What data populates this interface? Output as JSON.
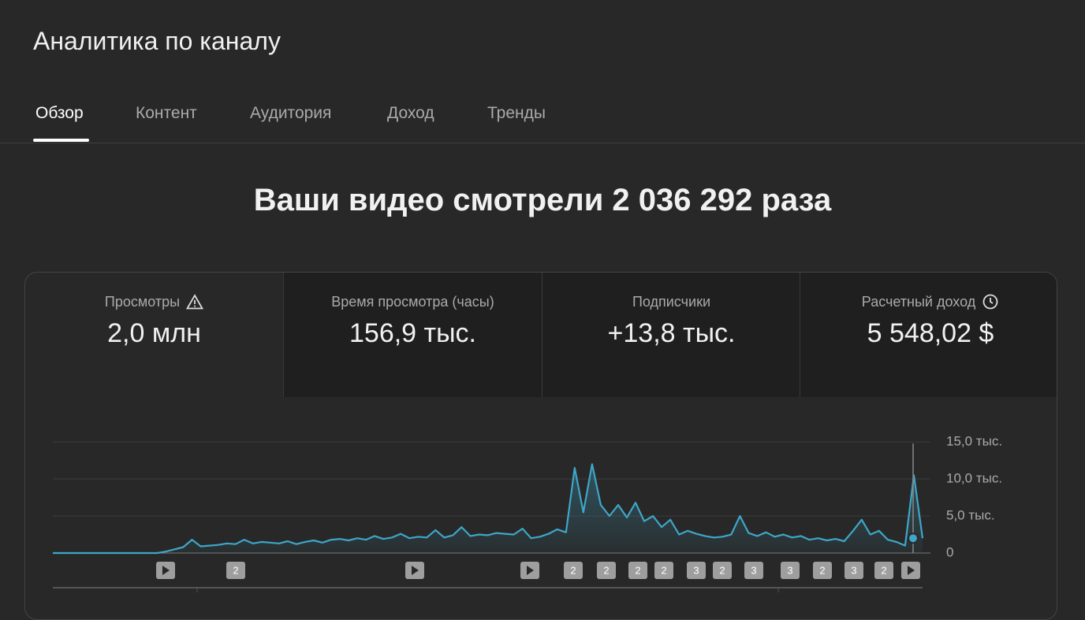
{
  "header": {
    "title": "Аналитика по каналу"
  },
  "tabs": [
    "Обзор",
    "Контент",
    "Аудитория",
    "Доход",
    "Тренды"
  ],
  "headline": "Ваши видео смотрели 2 036 292 раза",
  "metrics": [
    {
      "label": "Просмотры",
      "value": "2,0 млн"
    },
    {
      "label": "Время просмотра (часы)",
      "value": "156,9 тыс."
    },
    {
      "label": "Подписчики",
      "value": "+13,8 тыс."
    },
    {
      "label": "Расчетный доход",
      "value": "5 548,02 $"
    }
  ],
  "chart_data": {
    "type": "line",
    "color": "#3ea6c8",
    "grid": true,
    "ylim": [
      0,
      15000
    ],
    "yticks": [
      0,
      {
        "value": 5000,
        "label": "5,0 тыс."
      },
      {
        "value": 10000,
        "label": "10,0 тыс."
      },
      {
        "value": 15000,
        "label": "15,0 тыс."
      }
    ],
    "values": [
      0,
      0,
      0,
      0,
      0,
      0,
      0,
      0,
      0,
      0,
      0,
      0,
      0,
      200,
      500,
      800,
      1800,
      900,
      1000,
      1100,
      1300,
      1200,
      1800,
      1300,
      1500,
      1400,
      1300,
      1600,
      1200,
      1500,
      1700,
      1400,
      1800,
      1900,
      1700,
      2000,
      1800,
      2300,
      1900,
      2100,
      2600,
      2000,
      2200,
      2100,
      3100,
      2100,
      2400,
      3500,
      2300,
      2500,
      2400,
      2700,
      2600,
      2500,
      3300,
      2000,
      2200,
      2600,
      3200,
      2800,
      11500,
      5500,
      12000,
      6500,
      5000,
      6500,
      4800,
      6800,
      4300,
      5000,
      3500,
      4500,
      2500,
      3000,
      2600,
      2300,
      2100,
      2200,
      2500,
      5000,
      2700,
      2300,
      2800,
      2200,
      2500,
      2100,
      2300,
      1800,
      2000,
      1700,
      1900,
      1600,
      3000,
      4500,
      2500,
      3000,
      1800,
      1500,
      1000,
      10500,
      2000
    ]
  },
  "annotations": [
    "2",
    "2",
    "2",
    "2",
    "2",
    "3",
    "2",
    "3",
    "3",
    "2",
    "3",
    "2"
  ]
}
